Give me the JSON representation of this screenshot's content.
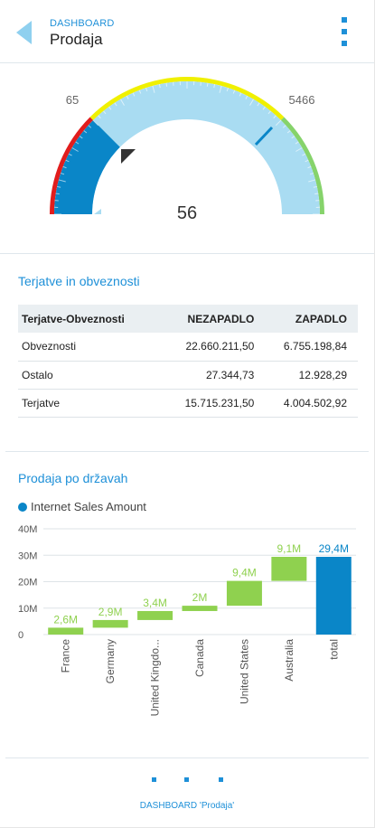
{
  "header": {
    "breadcrumb": "DASHBOARD",
    "title": "Prodaja"
  },
  "gauge": {
    "min_label": "65",
    "max_label": "5466",
    "value": "56",
    "colors": {
      "red": "#e11d1d",
      "yellow": "#f0f000",
      "green": "#86d36b",
      "value_fill": "#0a86c8",
      "range_fill": "#a9dcf2",
      "marker": "#333333"
    }
  },
  "table_section": {
    "title": "Terjatve in obveznosti",
    "columns": [
      "Terjatve-Obveznosti",
      "NEZAPADLO",
      "ZAPADLO"
    ],
    "rows": [
      [
        "Obveznosti",
        "22.660.211,50",
        "6.755.198,84"
      ],
      [
        "Ostalo",
        "27.344,73",
        "12.928,29"
      ],
      [
        "Terjatve",
        "15.715.231,50",
        "4.004.502,92"
      ]
    ]
  },
  "chart_section": {
    "title": "Prodaja po državah",
    "legend": "Internet Sales Amount"
  },
  "chart_data": {
    "type": "bar",
    "subtype": "waterfall",
    "categories": [
      "France",
      "Germany",
      "United Kingdo...",
      "Canada",
      "United States",
      "Australia",
      "total"
    ],
    "values": [
      2.6,
      2.9,
      3.4,
      2.0,
      9.4,
      9.1,
      29.4
    ],
    "value_labels": [
      "2,6M",
      "2,9M",
      "3,4M",
      "2M",
      "9,4M",
      "9,1M",
      "29,4M"
    ],
    "y_ticks": [
      "0",
      "10M",
      "20M",
      "30M",
      "40M"
    ],
    "ylim": [
      0,
      40
    ],
    "series": [
      {
        "name": "Internet Sales Amount",
        "values": [
          2.6,
          2.9,
          3.4,
          2.0,
          9.4,
          9.1,
          29.4
        ]
      }
    ],
    "colors": {
      "increment": "#8fd14f",
      "total": "#0a86c8",
      "grid": "#dde3e7"
    },
    "grid": true,
    "legend_position": "top-left"
  },
  "footer": {
    "caption": "DASHBOARD 'Prodaja'"
  }
}
